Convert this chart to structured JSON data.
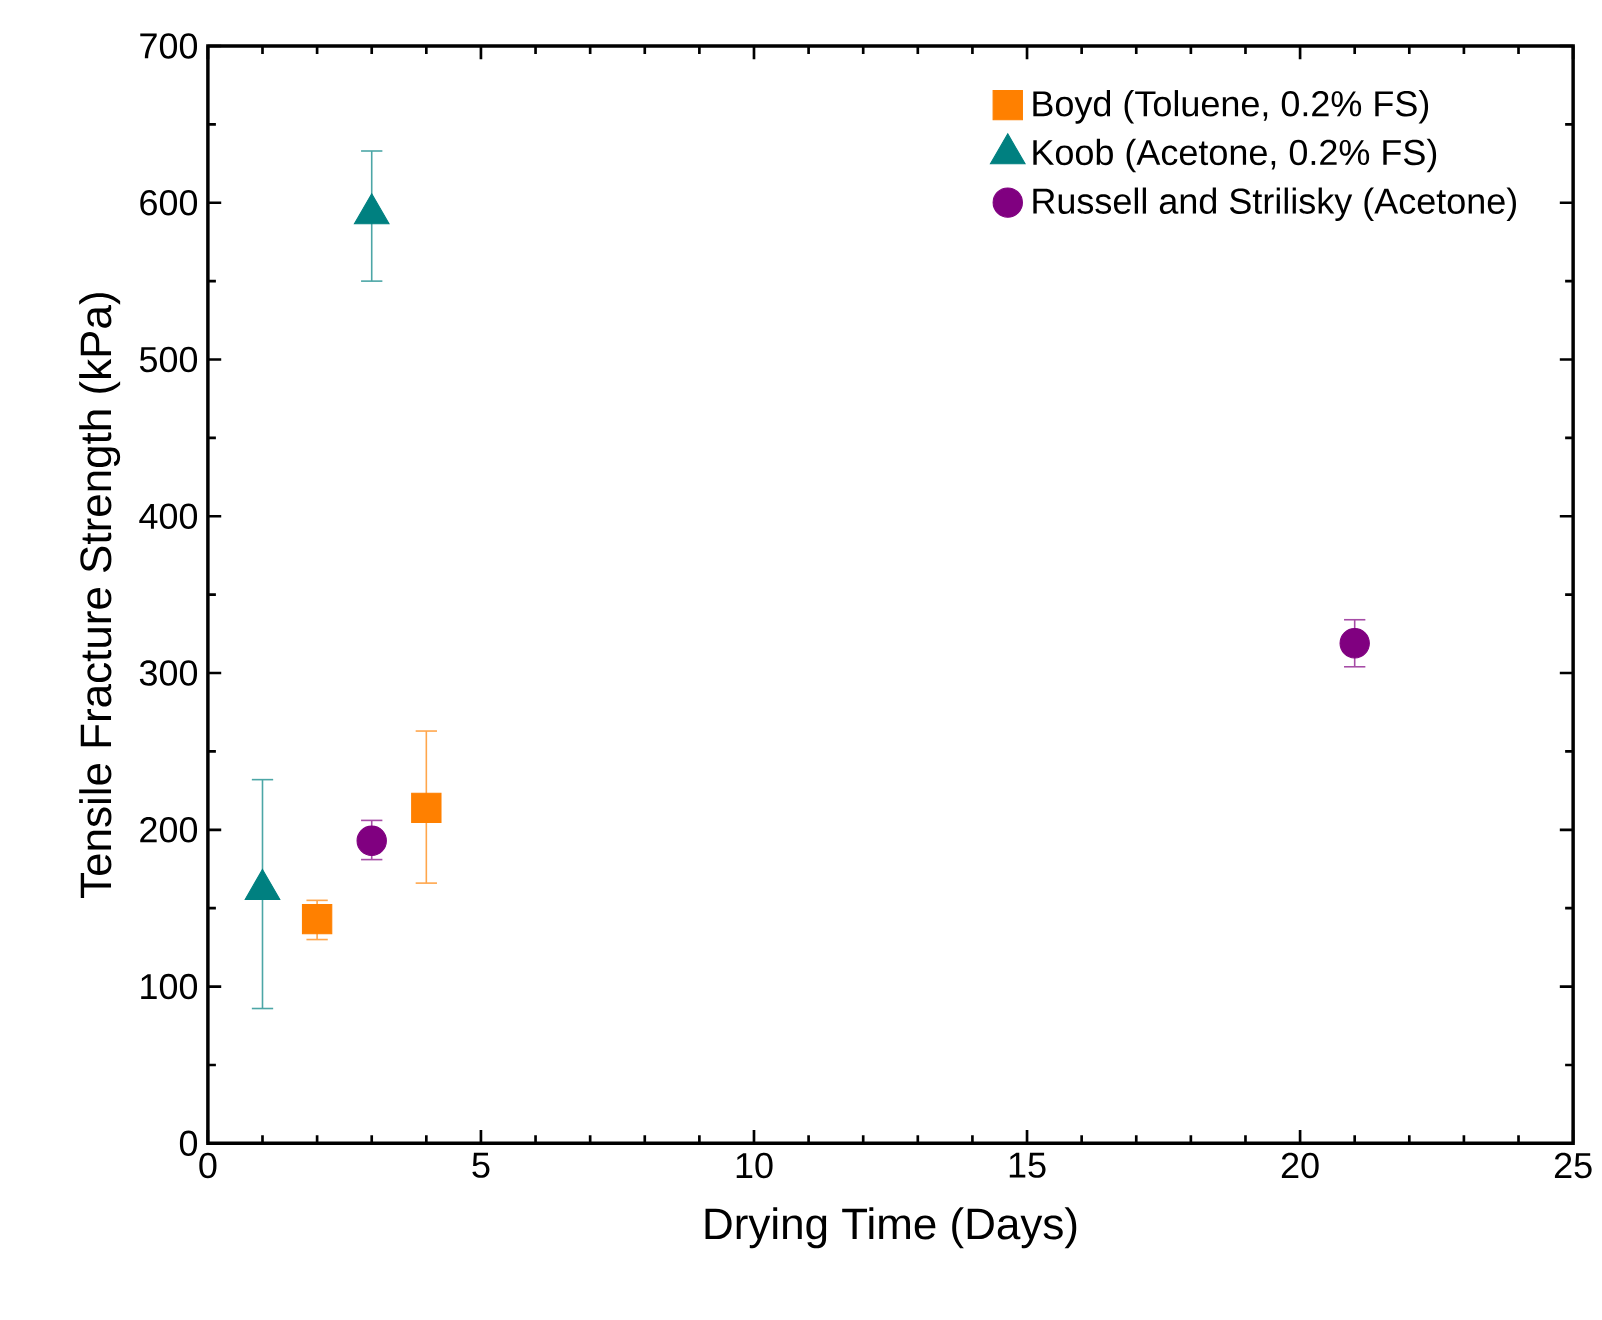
{
  "chart_data": {
    "type": "scatter",
    "xlabel": "Drying Time (Days)",
    "ylabel": "Tensile Fracture Strength (kPa)",
    "xlim": [
      0,
      25
    ],
    "ylim": [
      0,
      700
    ],
    "xticks": [
      0,
      5,
      10,
      15,
      20,
      25
    ],
    "yticks": [
      0,
      100,
      200,
      300,
      400,
      500,
      600,
      700
    ],
    "grid": false,
    "legend": "top right",
    "series": [
      {
        "name": "Boyd (Toluene, 0.2% FS)",
        "color": "#ff8000",
        "marker": "square",
        "x": [
          2,
          4
        ],
        "values": [
          143,
          214
        ],
        "errors": [
          [
            130,
            155
          ],
          [
            166,
            263
          ]
        ]
      },
      {
        "name": "Koob (Acetone, 0.2% FS)",
        "color": "#008080",
        "marker": "triangle",
        "x": [
          1,
          3
        ],
        "values": [
          162,
          593
        ],
        "errors": [
          [
            86,
            232
          ],
          [
            550,
            633
          ]
        ]
      },
      {
        "name": "Russell and Strilisky (Acetone)",
        "color": "#800080",
        "marker": "circle",
        "x": [
          3,
          21
        ],
        "values": [
          193,
          319
        ],
        "errors": [
          [
            181,
            206
          ],
          [
            304,
            334
          ]
        ]
      }
    ]
  }
}
